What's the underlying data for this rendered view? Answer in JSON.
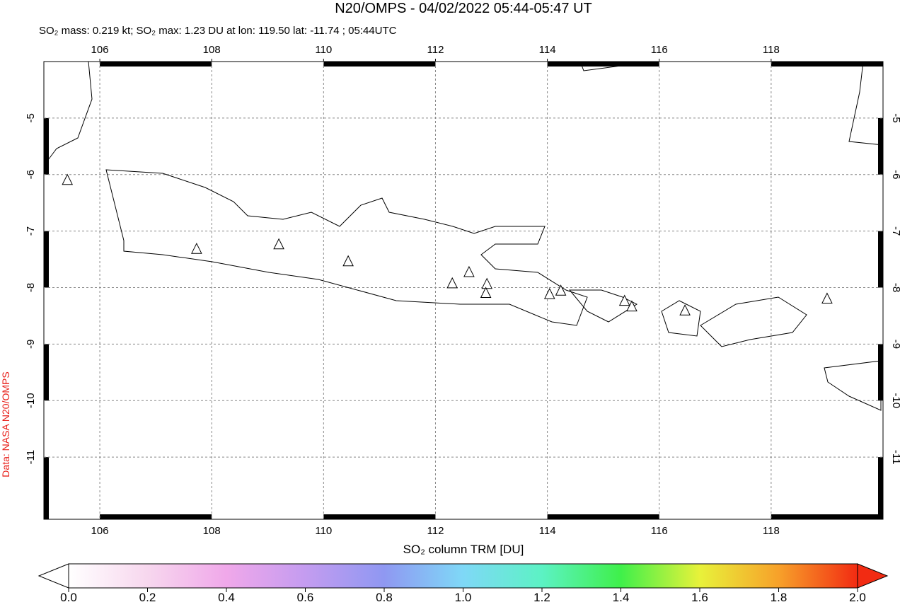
{
  "chart_data": {
    "type": "map",
    "title": "N20/OMPS - 04/02/2022 05:44-05:47 UT",
    "subtitle": "SO₂ mass: 0.219 kt; SO₂ max: 1.23 DU at lon: 119.50 lat: -11.74 ; 05:44UTC",
    "side_label": "Data: NASA N20/OMPS",
    "xlim": [
      105.0,
      120.0
    ],
    "ylim": [
      -12.1,
      -4.0
    ],
    "xticks": [
      106,
      108,
      110,
      112,
      114,
      116,
      118
    ],
    "yticks": [
      -5,
      -6,
      -7,
      -8,
      -9,
      -10,
      -11
    ],
    "grid": true,
    "volcanoes": {
      "lon": [
        105.42,
        107.73,
        109.2,
        110.44,
        112.3,
        112.6,
        112.92,
        112.9,
        114.04,
        114.24,
        115.38,
        115.51,
        116.46,
        119.0
      ],
      "lat": [
        -6.1,
        -7.32,
        -7.24,
        -7.54,
        -7.93,
        -7.73,
        -7.94,
        -8.1,
        -8.12,
        -8.06,
        -8.24,
        -8.34,
        -8.41,
        -8.2
      ]
    },
    "colorbar": {
      "label": "SO₂ column TRM [DU]",
      "lim": [
        0.0,
        2.0
      ],
      "ticks": [
        {
          "value": 0.0,
          "label": "0.0"
        },
        {
          "value": 0.2,
          "label": "0.2"
        },
        {
          "value": 0.4,
          "label": "0.4"
        },
        {
          "value": 0.6,
          "label": "0.6"
        },
        {
          "value": 0.8,
          "label": "0.8"
        },
        {
          "value": 1.0,
          "label": "1.0"
        },
        {
          "value": 1.2,
          "label": "1.2"
        },
        {
          "value": 1.4,
          "label": "1.4"
        },
        {
          "value": 1.6,
          "label": "1.6"
        },
        {
          "value": 1.8,
          "label": "1.8"
        },
        {
          "value": 2.0,
          "label": "2.0"
        }
      ],
      "colors": [
        "#ffffff",
        "#f7d7ee",
        "#f0a8ea",
        "#c49cf0",
        "#8f98f2",
        "#7fd8f7",
        "#5cf2c4",
        "#3ff04a",
        "#e8f23a",
        "#f7a12a",
        "#f22b12"
      ]
    }
  }
}
